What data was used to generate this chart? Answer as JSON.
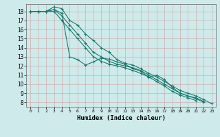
{
  "xlabel": "Humidex (Indice chaleur)",
  "ylabel": "",
  "bg_color": "#ceeaea",
  "grid_color": "#b0c8c8",
  "line_color": "#1a7a6e",
  "xlim": [
    -0.5,
    23.5
  ],
  "ylim": [
    7.5,
    18.8
  ],
  "xticks": [
    0,
    1,
    2,
    3,
    4,
    5,
    6,
    7,
    8,
    9,
    10,
    11,
    12,
    13,
    14,
    15,
    16,
    17,
    18,
    19,
    20,
    21,
    22,
    23
  ],
  "yticks": [
    8,
    9,
    10,
    11,
    12,
    13,
    14,
    15,
    16,
    17,
    18
  ],
  "series": [
    [
      18,
      18,
      18,
      18.5,
      18.3,
      17.0,
      16.5,
      15.5,
      14.8,
      14.0,
      13.5,
      12.7,
      12.3,
      12.1,
      11.7,
      11.2,
      10.8,
      10.3,
      9.8,
      9.3,
      9.0,
      8.7,
      8.3,
      7.85
    ],
    [
      18,
      18,
      18,
      18.2,
      17.8,
      13.0,
      12.7,
      12.1,
      12.45,
      12.85,
      12.75,
      12.45,
      12.2,
      11.7,
      11.45,
      10.75,
      11.0,
      10.5,
      9.65,
      9.0,
      8.7,
      8.5,
      8.1,
      null
    ],
    [
      18,
      18,
      18,
      18.2,
      17.5,
      16.5,
      15.5,
      14.5,
      13.5,
      13.0,
      12.5,
      12.2,
      12.0,
      11.8,
      11.5,
      11.0,
      10.5,
      10.0,
      9.5,
      9.0,
      8.7,
      8.4,
      8.0,
      null
    ],
    [
      18,
      18,
      18,
      18.0,
      17.0,
      16.0,
      15.0,
      14.0,
      13.0,
      12.5,
      12.2,
      12.0,
      11.8,
      11.5,
      11.2,
      10.8,
      10.3,
      9.8,
      9.2,
      8.8,
      8.5,
      8.2,
      null,
      null
    ]
  ]
}
